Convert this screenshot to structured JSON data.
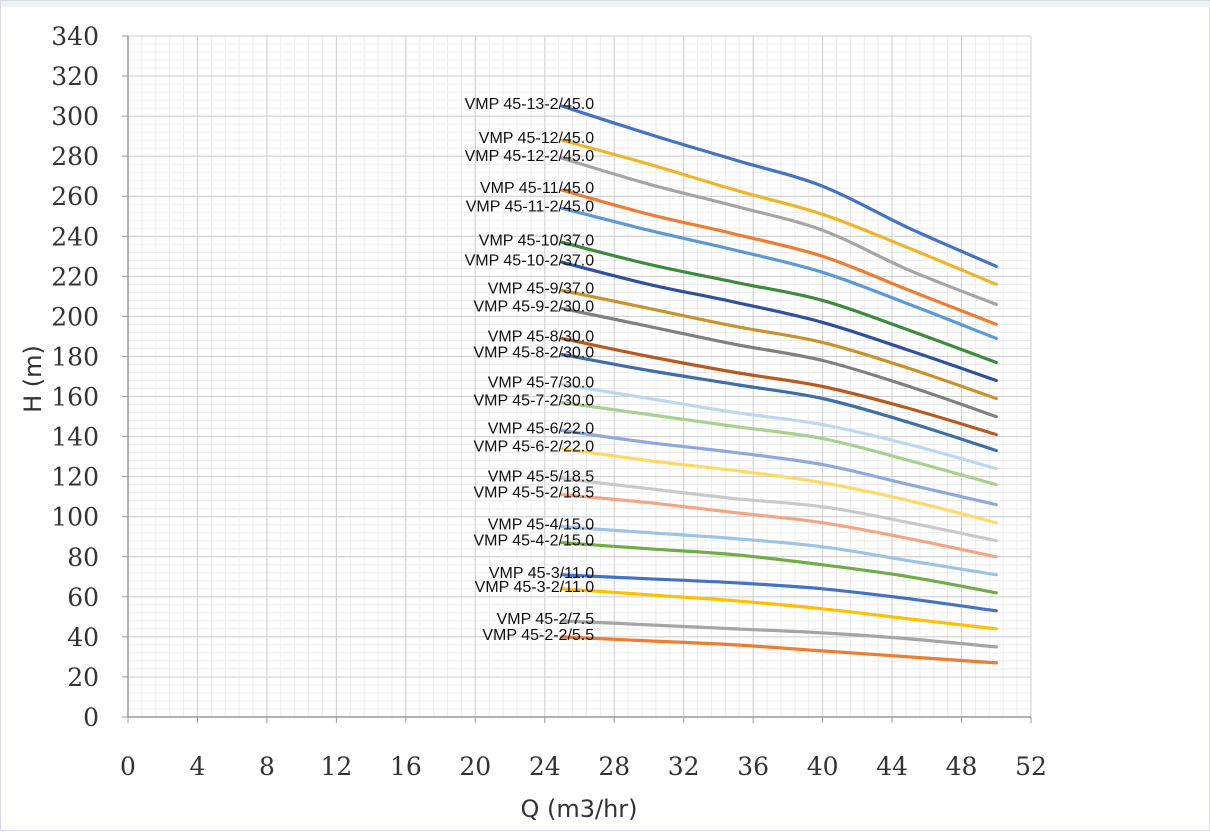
{
  "chart_data": {
    "type": "line",
    "title": "",
    "xlabel": "Q (m3/hr)",
    "ylabel": "H (m)",
    "xlim": [
      0,
      52
    ],
    "ylim": [
      0,
      340
    ],
    "xticks": [
      0,
      4,
      8,
      12,
      16,
      20,
      24,
      28,
      32,
      36,
      40,
      44,
      48,
      52
    ],
    "yticks": [
      0,
      20,
      40,
      60,
      80,
      100,
      120,
      140,
      160,
      180,
      200,
      220,
      240,
      260,
      280,
      300,
      320,
      340
    ],
    "grid": true,
    "legend": "inline labels at curve start",
    "x": [
      25,
      30,
      35,
      40,
      45,
      50
    ],
    "series": [
      {
        "name": "VMP 45-13-2/45.0",
        "color": "#4472c4",
        "values": [
          305,
          291,
          278,
          265,
          244,
          225
        ]
      },
      {
        "name": "VMP 45-12/45.0",
        "color": "#f0b429",
        "values": [
          288,
          276,
          263,
          251,
          234,
          216
        ]
      },
      {
        "name": "VMP 45-12-2/45.0",
        "color": "#a5a5a5",
        "values": [
          279,
          266,
          255,
          243,
          223,
          206
        ]
      },
      {
        "name": "VMP 45-11/45.0",
        "color": "#ed7d31",
        "values": [
          263,
          251,
          241,
          230,
          213,
          196
        ]
      },
      {
        "name": "VMP 45-11-2/45.0",
        "color": "#5b9bd5",
        "values": [
          254,
          243,
          233,
          222,
          206,
          189
        ]
      },
      {
        "name": "VMP 45-10/37.0",
        "color": "#3d8b3d",
        "values": [
          237,
          226,
          217,
          208,
          193,
          177
        ]
      },
      {
        "name": "VMP 45-10-2/37.0",
        "color": "#2f4fa2",
        "values": [
          227,
          216,
          207,
          197,
          183,
          168
        ]
      },
      {
        "name": "VMP 45-9/37.0",
        "color": "#c9922a",
        "values": [
          213,
          204,
          195,
          187,
          174,
          159
        ]
      },
      {
        "name": "VMP 45-9-2/30.0",
        "color": "#808080",
        "values": [
          204,
          195,
          186,
          178,
          165,
          150
        ]
      },
      {
        "name": "VMP 45-8/30.0",
        "color": "#b85a1e",
        "values": [
          189,
          180,
          172,
          165,
          154,
          141
        ]
      },
      {
        "name": "VMP 45-8-2/30.0",
        "color": "#3e6fa8",
        "values": [
          181,
          173,
          166,
          159,
          147,
          133
        ]
      },
      {
        "name": "VMP 45-7/30.0",
        "color": "#bdd7ee",
        "values": [
          166,
          159,
          152,
          146,
          136,
          124
        ]
      },
      {
        "name": "VMP 45-7-2/30.0",
        "color": "#a9d18e",
        "values": [
          157,
          151,
          145,
          139,
          128,
          116
        ]
      },
      {
        "name": "VMP 45-6/22.0",
        "color": "#8ea9db",
        "values": [
          143,
          137,
          132,
          126,
          116,
          106
        ]
      },
      {
        "name": "VMP 45-6-2/22.0",
        "color": "#ffd966",
        "values": [
          134,
          128,
          123,
          117,
          108,
          97
        ]
      },
      {
        "name": "VMP 45-5/18.5",
        "color": "#c9c9c9",
        "values": [
          119,
          114,
          109,
          105,
          97,
          88
        ]
      },
      {
        "name": "VMP 45-5-2/18.5",
        "color": "#f4a582",
        "values": [
          111,
          107,
          102,
          97,
          89,
          80
        ]
      },
      {
        "name": "VMP 45-4/15.0",
        "color": "#9dc3e6",
        "values": [
          95,
          92,
          89,
          85,
          78,
          71
        ]
      },
      {
        "name": "VMP 45-4-2/15.0",
        "color": "#70ad47",
        "values": [
          87,
          84,
          81,
          76,
          70,
          62
        ]
      },
      {
        "name": "VMP 45-3/11.0",
        "color": "#4472c4",
        "values": [
          71,
          69,
          67,
          64,
          59,
          53
        ]
      },
      {
        "name": "VMP 45-3-2/11.0",
        "color": "#ffc000",
        "values": [
          64,
          61,
          58,
          54,
          49,
          44
        ]
      },
      {
        "name": "VMP 45-2/7.5",
        "color": "#a5a5a5",
        "values": [
          48,
          46,
          44,
          42,
          39,
          35
        ]
      },
      {
        "name": "VMP 45-2-2/5.5",
        "color": "#ed7d31",
        "values": [
          40,
          38,
          36,
          33,
          30,
          27
        ]
      }
    ]
  }
}
